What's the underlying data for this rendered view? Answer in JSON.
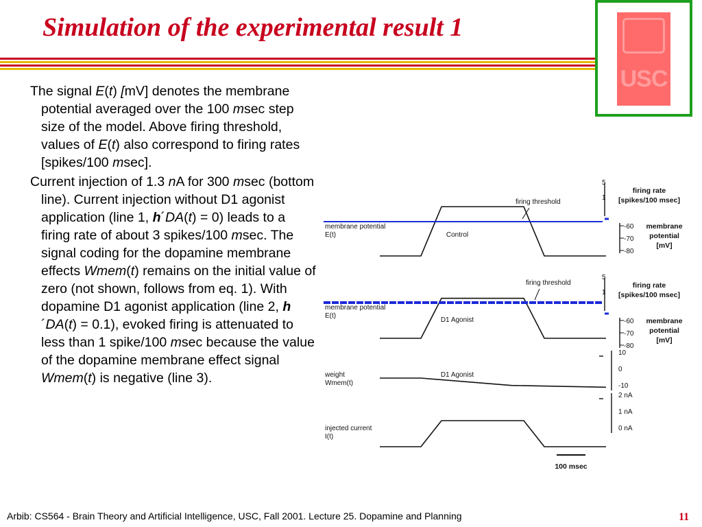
{
  "slide": {
    "title": "Simulation of the experimental result 1",
    "footer": "Arbib: CS564 - Brain Theory and Artificial Intelligence, USC, Fall 2001. Lecture 25. Dopamine and Planning",
    "page_number": "11",
    "logo_text": "USC",
    "stripe_colors": [
      "#c8001e",
      "#e6b800",
      "#c8001e",
      "#e6b800"
    ]
  },
  "body": {
    "p1": [
      {
        "t": "The signal "
      },
      {
        "t": "E",
        "i": true
      },
      {
        "t": "("
      },
      {
        "t": "t",
        "i": true
      },
      {
        "t": ") "
      },
      {
        "t": "[",
        "i": true
      },
      {
        "t": "mV] denotes the membrane potential averaged over the 100 "
      },
      {
        "t": "m",
        "i": true
      },
      {
        "t": "sec step size of the model. Above firing threshold, values of "
      },
      {
        "t": "E",
        "i": true
      },
      {
        "t": "("
      },
      {
        "t": "t",
        "i": true
      },
      {
        "t": ") also correspond to firing rates [spikes/100 "
      },
      {
        "t": "m",
        "i": true
      },
      {
        "t": "sec]."
      }
    ],
    "p2": [
      {
        "t": "Current injection of 1.3 "
      },
      {
        "t": "n",
        "i": true
      },
      {
        "t": "A for 300 "
      },
      {
        "t": "m",
        "i": true
      },
      {
        "t": "sec (bottom line). Current injection without D1 agonist application (line 1, "
      },
      {
        "t": "h",
        "i": true,
        "b": true
      },
      {
        "t": "´"
      },
      {
        "t": "DA",
        "i": true
      },
      {
        "t": "("
      },
      {
        "t": "t",
        "i": true
      },
      {
        "t": ") = 0)  leads to a firing rate of about 3 spikes/100 "
      },
      {
        "t": "m",
        "i": true
      },
      {
        "t": "sec. The signal coding for the dopamine membrane effects "
      },
      {
        "t": "Wmem",
        "i": true
      },
      {
        "t": "("
      },
      {
        "t": "t",
        "i": true
      },
      {
        "t": ") remains on the initial value of zero (not shown, follows from eq. 1). With dopamine D1 agonist application (line 2, "
      },
      {
        "t": "h",
        "i": true,
        "b": true
      },
      {
        "t": "´"
      },
      {
        "t": "DA",
        "i": true
      },
      {
        "t": "("
      },
      {
        "t": "t",
        "i": true
      },
      {
        "t": ") = 0.1), evoked firing is attenuated to less than 1 spike/100 "
      },
      {
        "t": "m",
        "i": true
      },
      {
        "t": "sec because the value of the dopamine membrane effect signal "
      },
      {
        "t": "Wmem",
        "i": true
      },
      {
        "t": "("
      },
      {
        "t": "t",
        "i": true
      },
      {
        "t": ") is negative  (line 3)."
      }
    ]
  },
  "chart_data": {
    "type": "line",
    "time_unit": "100 msec per scale bar",
    "scale_bar_label": "100 msec",
    "panels": [
      {
        "name": "control",
        "signal_label": "membrane potential E(t)",
        "condition": "Control",
        "threshold_label": "firing threshold",
        "right_axis_top": {
          "label": "firing rate [spikes/100 msec]",
          "ticks": [
            "5",
            "1"
          ]
        },
        "right_axis_bottom": {
          "label": "membrane potential [mV]",
          "ticks": [
            "-60",
            "-70",
            "-80"
          ]
        },
        "x": [
          0,
          1,
          1.5,
          3.5,
          4.0,
          5.5
        ],
        "y": [
          -80,
          -80,
          -57,
          -57,
          -80,
          -80
        ],
        "threshold": -63
      },
      {
        "name": "d1_agonist",
        "signal_label": "membrane potential E(t)",
        "condition": "D1 Agonist",
        "threshold_label": "firing threshold",
        "right_axis_top": {
          "label": "firing rate [spikes/100 msec]",
          "ticks": [
            "5",
            "1"
          ]
        },
        "right_axis_bottom": {
          "label": "membrane potential [mV]",
          "ticks": [
            "-60",
            "-70",
            "-80"
          ]
        },
        "x": [
          0,
          1,
          1.5,
          3.5,
          4.0,
          5.5
        ],
        "y": [
          -80,
          -80,
          -62.5,
          -62.5,
          -80,
          -80
        ],
        "threshold": -63
      },
      {
        "name": "weight",
        "signal_label": "weight Wmem(t)",
        "condition": "D1 Agonist",
        "right_axis": {
          "ticks": [
            "10",
            "0",
            "-10"
          ]
        },
        "x": [
          0,
          1,
          3.2,
          5.5
        ],
        "y": [
          0,
          0,
          -2,
          -2.5
        ]
      },
      {
        "name": "current",
        "signal_label": "injected current I(t)",
        "right_axis": {
          "ticks": [
            "2 nA",
            "1 nA",
            "0 nA"
          ]
        },
        "x": [
          0,
          1,
          1.5,
          3.5,
          4.0,
          5.5
        ],
        "y": [
          0,
          0,
          1.3,
          1.3,
          0,
          0
        ]
      }
    ]
  }
}
